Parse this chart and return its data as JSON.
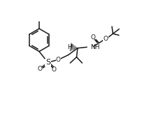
{
  "bg_color": "#ffffff",
  "line_color": "#1a1a1a",
  "line_width": 1.1,
  "font_size": 6.5,
  "figsize": [
    2.13,
    1.8
  ],
  "dpi": 100,
  "xlim": [
    0,
    10
  ],
  "ylim": [
    0,
    10
  ]
}
